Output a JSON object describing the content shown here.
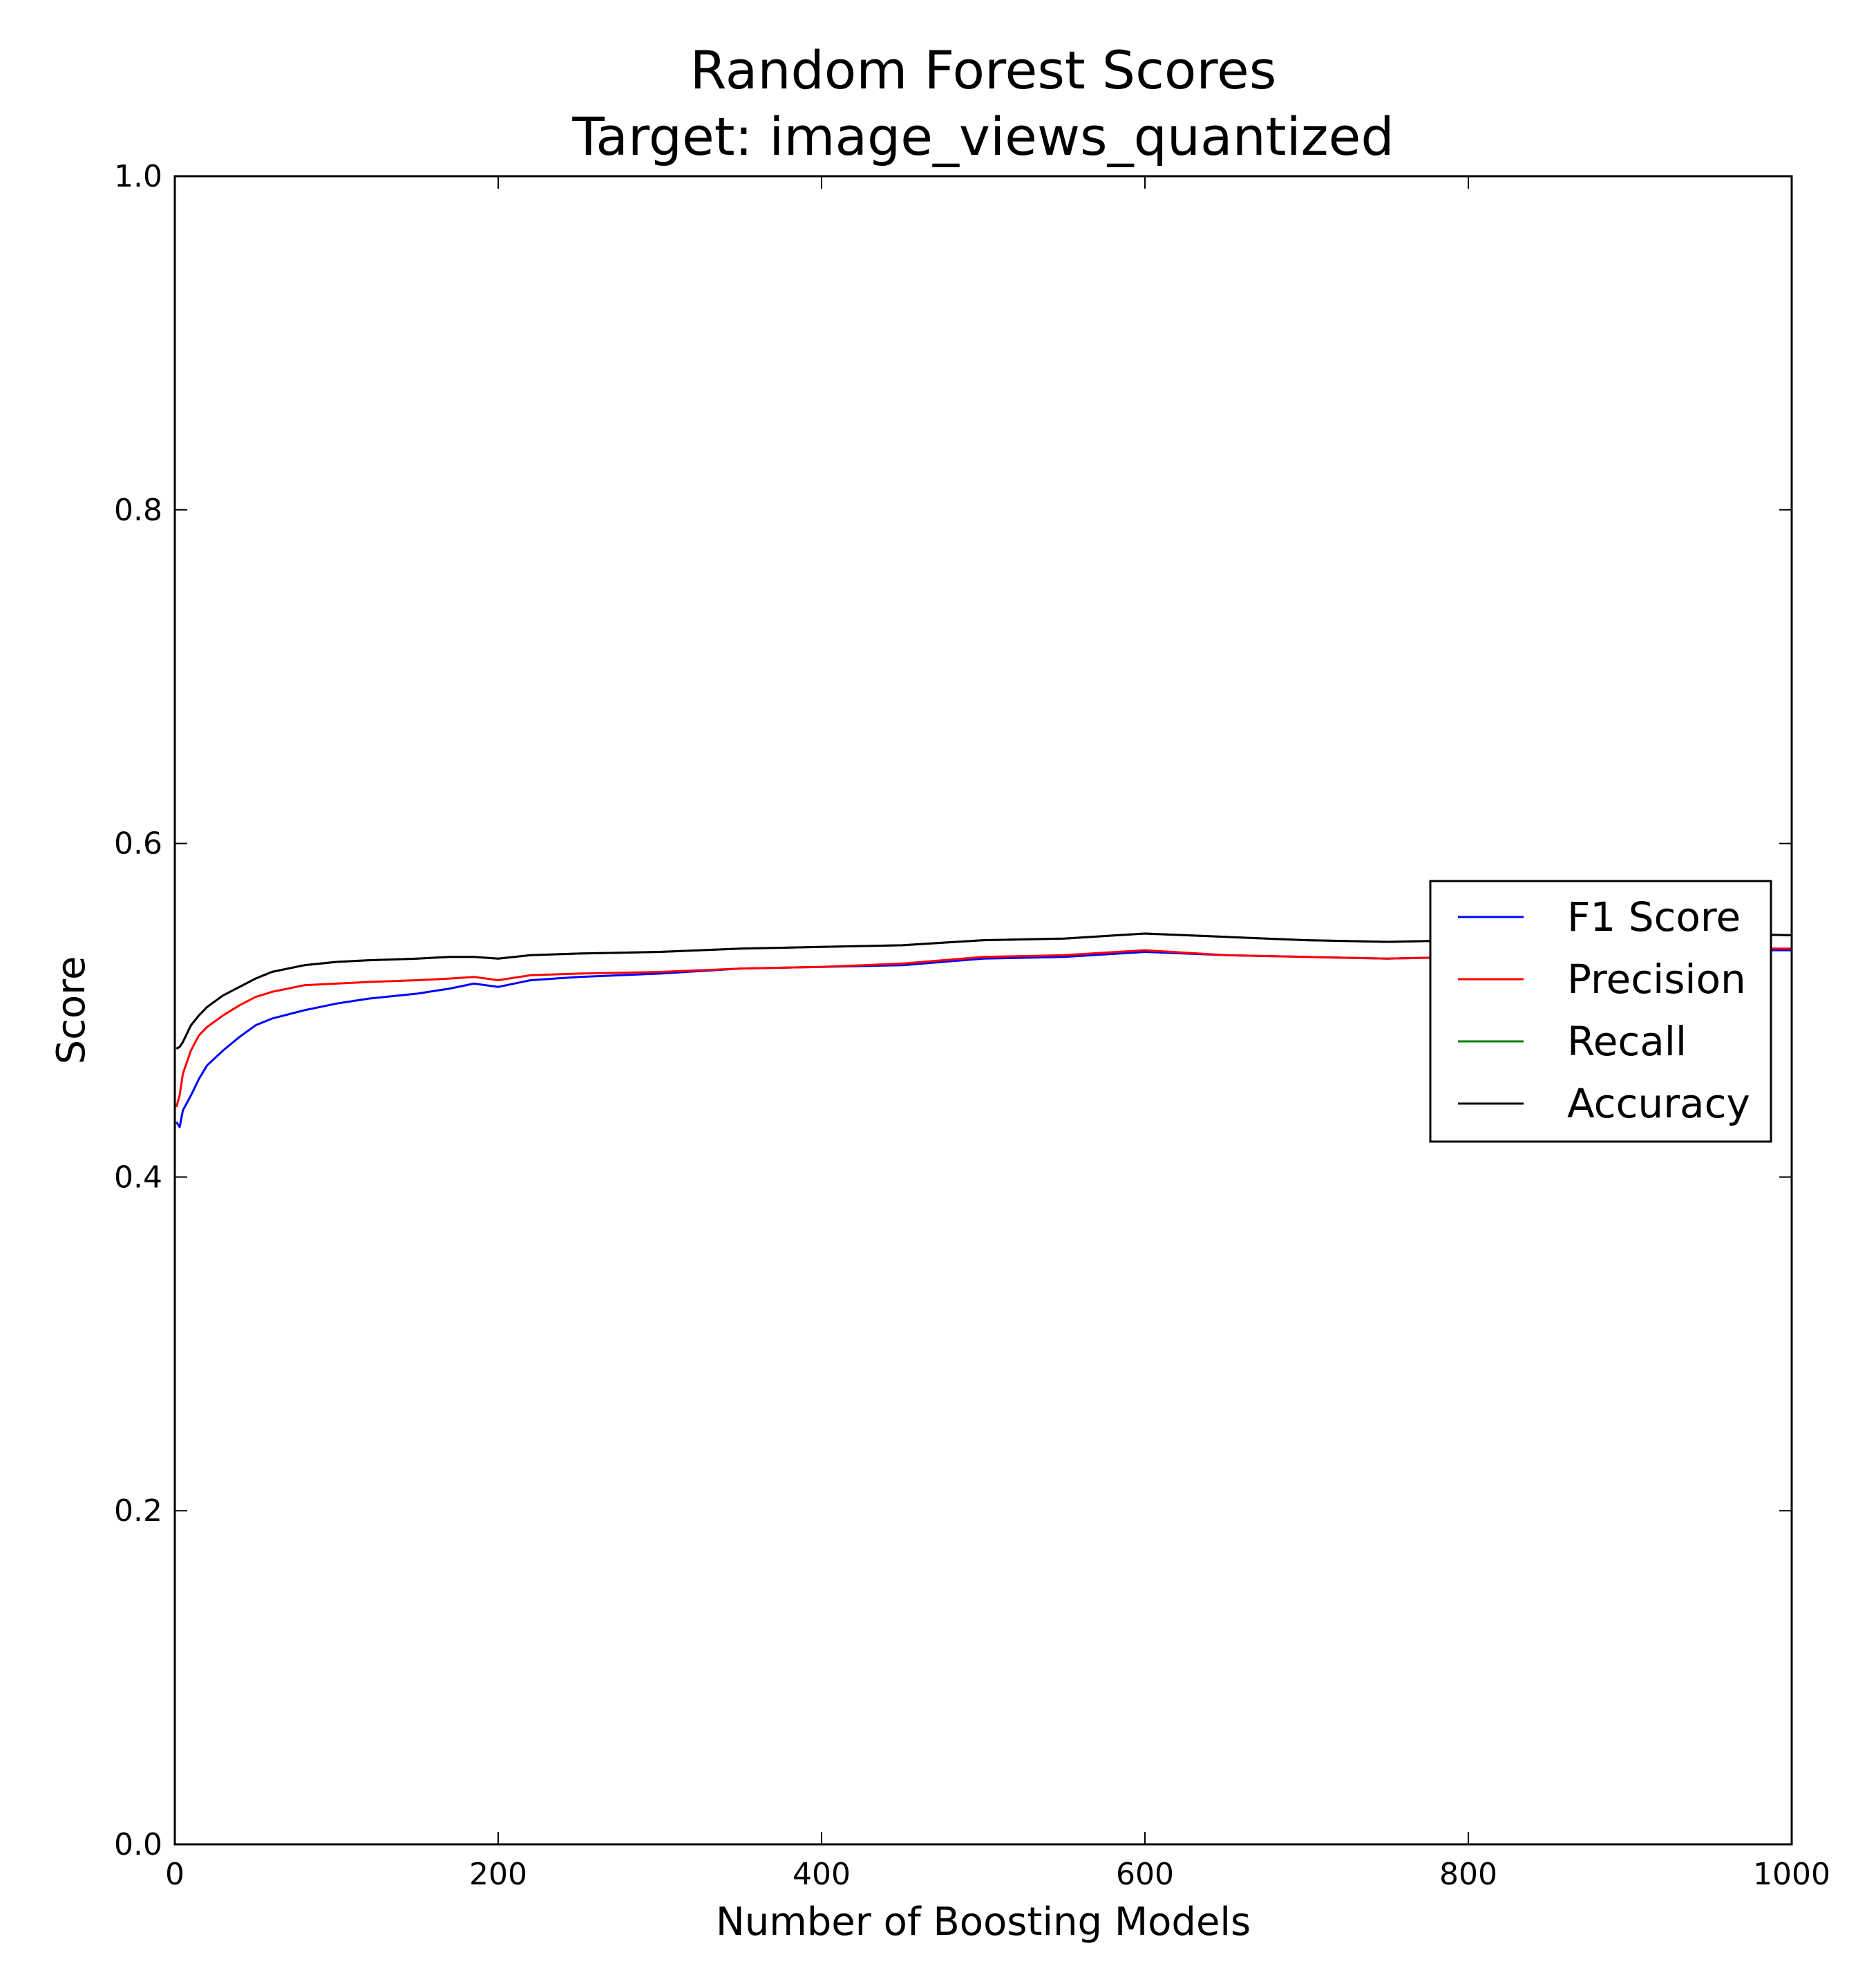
{
  "chart_data": {
    "type": "line",
    "title": "Random Forest Scores",
    "subtitle": "Target: image_views_quantized",
    "xlabel": "Number of Boosting Models",
    "ylabel": "Score",
    "xlim": [
      0,
      1000
    ],
    "ylim": [
      0.0,
      1.0
    ],
    "xticks": [
      0,
      200,
      400,
      600,
      800,
      1000
    ],
    "xtick_labels": [
      "0",
      "200",
      "400",
      "600",
      "800",
      "1000"
    ],
    "yticks": [
      0.0,
      0.2,
      0.4,
      0.6,
      0.8,
      1.0
    ],
    "ytick_labels": [
      "0.0",
      "0.2",
      "0.4",
      "0.6",
      "0.8",
      "1.0"
    ],
    "grid": false,
    "legend_position": "center-right",
    "series": [
      {
        "name": "F1 Score",
        "color": "#0000ff",
        "x": [
          1,
          3,
          5,
          10,
          15,
          20,
          30,
          40,
          50,
          60,
          80,
          100,
          120,
          150,
          170,
          185,
          200,
          220,
          250,
          300,
          350,
          400,
          450,
          500,
          550,
          600,
          650,
          700,
          750,
          800,
          850,
          900,
          950,
          1000
        ],
        "y": [
          0.433,
          0.43,
          0.44,
          0.449,
          0.459,
          0.467,
          0.476,
          0.484,
          0.491,
          0.495,
          0.5,
          0.504,
          0.507,
          0.51,
          0.513,
          0.516,
          0.514,
          0.518,
          0.52,
          0.522,
          0.525,
          0.526,
          0.527,
          0.531,
          0.532,
          0.535,
          0.533,
          0.532,
          0.531,
          0.532,
          0.534,
          0.535,
          0.536,
          0.536
        ]
      },
      {
        "name": "Precision",
        "color": "#ff0000",
        "x": [
          1,
          3,
          5,
          10,
          15,
          20,
          30,
          40,
          50,
          60,
          80,
          100,
          120,
          150,
          170,
          185,
          200,
          220,
          250,
          300,
          350,
          400,
          450,
          500,
          550,
          600,
          650,
          700,
          750,
          800,
          850,
          900,
          950,
          1000
        ],
        "y": [
          0.442,
          0.449,
          0.462,
          0.476,
          0.485,
          0.49,
          0.497,
          0.503,
          0.508,
          0.511,
          0.515,
          0.516,
          0.517,
          0.518,
          0.519,
          0.52,
          0.518,
          0.521,
          0.522,
          0.523,
          0.525,
          0.526,
          0.528,
          0.532,
          0.533,
          0.536,
          0.533,
          0.532,
          0.531,
          0.532,
          0.534,
          0.535,
          0.537,
          0.537
        ]
      },
      {
        "name": "Recall",
        "color": "#008000",
        "x": [
          1,
          3,
          5,
          10,
          15,
          20,
          30,
          40,
          50,
          60,
          80,
          100,
          120,
          150,
          170,
          185,
          200,
          220,
          250,
          300,
          350,
          400,
          450,
          500,
          550,
          600,
          650,
          700,
          750,
          800,
          850,
          900,
          950,
          1000
        ],
        "y": [
          0.477,
          0.478,
          0.481,
          0.491,
          0.497,
          0.502,
          0.509,
          0.514,
          0.519,
          0.523,
          0.527,
          0.529,
          0.53,
          0.531,
          0.532,
          0.532,
          0.531,
          0.533,
          0.534,
          0.535,
          0.537,
          0.538,
          0.539,
          0.542,
          0.543,
          0.546,
          0.544,
          0.542,
          0.541,
          0.542,
          0.543,
          0.544,
          0.546,
          0.545
        ]
      },
      {
        "name": "Accuracy",
        "color": "#000000",
        "x": [
          1,
          3,
          5,
          10,
          15,
          20,
          30,
          40,
          50,
          60,
          80,
          100,
          120,
          150,
          170,
          185,
          200,
          220,
          250,
          300,
          350,
          400,
          450,
          500,
          550,
          600,
          650,
          700,
          750,
          800,
          850,
          900,
          950,
          1000
        ],
        "y": [
          0.477,
          0.478,
          0.481,
          0.491,
          0.497,
          0.502,
          0.509,
          0.514,
          0.519,
          0.523,
          0.527,
          0.529,
          0.53,
          0.531,
          0.532,
          0.532,
          0.531,
          0.533,
          0.534,
          0.535,
          0.537,
          0.538,
          0.539,
          0.542,
          0.543,
          0.546,
          0.544,
          0.542,
          0.541,
          0.542,
          0.543,
          0.544,
          0.546,
          0.545
        ]
      }
    ]
  }
}
